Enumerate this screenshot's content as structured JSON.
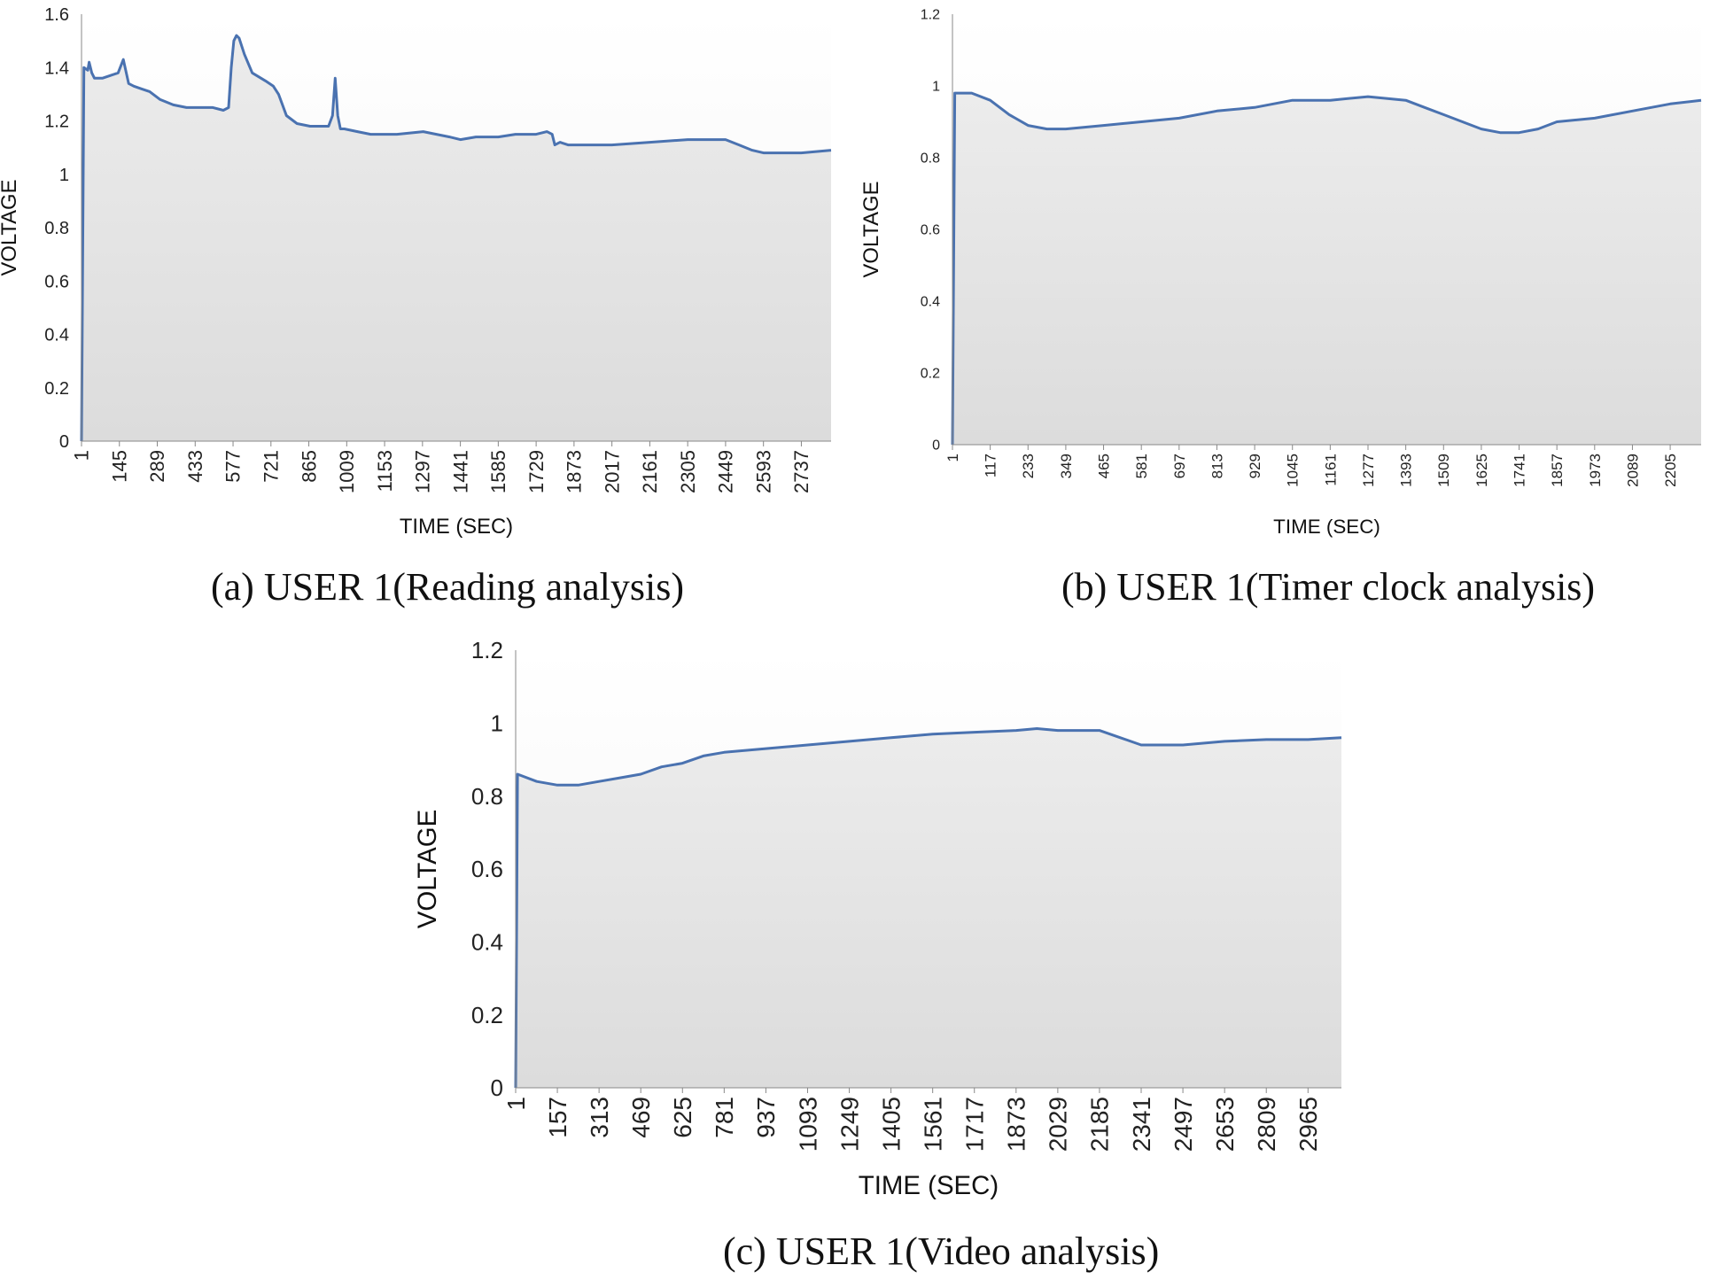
{
  "charts": [
    {
      "id": "a",
      "caption": "(a) USER 1(Reading analysis)",
      "chart_data": {
        "type": "area",
        "title": "",
        "xlabel": "TIME (SEC)",
        "ylabel": "VOLTAGE",
        "ylim": [
          0,
          1.6
        ],
        "yticks": [
          0,
          0.2,
          0.4,
          0.6,
          0.8,
          1,
          1.2,
          1.4,
          1.6
        ],
        "xlim": [
          1,
          2850
        ],
        "xticks": [
          1,
          145,
          289,
          433,
          577,
          721,
          865,
          1009,
          1153,
          1297,
          1441,
          1585,
          1729,
          1873,
          2017,
          2161,
          2305,
          2449,
          2593,
          2737
        ],
        "grid": false,
        "legend": "none",
        "line_color": "#4a72b0",
        "fill_color": "#dcdcdc",
        "series": [
          {
            "x": [
              1,
              10,
              25,
              30,
              40,
              50,
              80,
              110,
              140,
              160,
              180,
              200,
              230,
              260,
              300,
              350,
              400,
              450,
              500,
              540,
              560,
              570,
              580,
              590,
              600,
              620,
              650,
              700,
              730,
              750,
              780,
              820,
              870,
              920,
              940,
              955,
              965,
              975,
              985,
              1000,
              1050,
              1100,
              1150,
              1200,
              1300,
              1400,
              1441,
              1500,
              1585,
              1650,
              1729,
              1770,
              1790,
              1800,
              1820,
              1850,
              1900,
              2017,
              2161,
              2305,
              2449,
              2500,
              2550,
              2593,
              2650,
              2737,
              2850
            ],
            "y": [
              0,
              1.4,
              1.39,
              1.42,
              1.38,
              1.36,
              1.36,
              1.37,
              1.38,
              1.43,
              1.34,
              1.33,
              1.32,
              1.31,
              1.28,
              1.26,
              1.25,
              1.25,
              1.25,
              1.24,
              1.25,
              1.4,
              1.5,
              1.52,
              1.51,
              1.45,
              1.38,
              1.35,
              1.33,
              1.3,
              1.22,
              1.19,
              1.18,
              1.18,
              1.18,
              1.22,
              1.36,
              1.22,
              1.17,
              1.17,
              1.16,
              1.15,
              1.15,
              1.15,
              1.16,
              1.14,
              1.13,
              1.14,
              1.14,
              1.15,
              1.15,
              1.16,
              1.15,
              1.11,
              1.12,
              1.11,
              1.11,
              1.11,
              1.12,
              1.13,
              1.13,
              1.11,
              1.09,
              1.08,
              1.08,
              1.08,
              1.09
            ]
          }
        ]
      }
    },
    {
      "id": "b",
      "caption": "(b) USER 1(Timer clock analysis)",
      "chart_data": {
        "type": "area",
        "title": "",
        "xlabel": "TIME (SEC)",
        "ylabel": "VOLTAGE",
        "ylim": [
          0,
          1.2
        ],
        "yticks": [
          0,
          0.2,
          0.4,
          0.6,
          0.8,
          1,
          1.2
        ],
        "xlim": [
          1,
          2300
        ],
        "xticks": [
          1,
          117,
          233,
          349,
          465,
          581,
          697,
          813,
          929,
          1045,
          1161,
          1277,
          1393,
          1509,
          1625,
          1741,
          1857,
          1973,
          2089,
          2205
        ],
        "grid": false,
        "legend": "none",
        "line_color": "#4a72b0",
        "fill_color": "#dcdcdc",
        "series": [
          {
            "x": [
              1,
              8,
              60,
              117,
              175,
              233,
              291,
              349,
              465,
              581,
              697,
              813,
              929,
              1045,
              1161,
              1277,
              1393,
              1451,
              1509,
              1567,
              1625,
              1683,
              1741,
              1799,
              1857,
              1973,
              2089,
              2205,
              2300
            ],
            "y": [
              0,
              0.98,
              0.98,
              0.96,
              0.92,
              0.89,
              0.88,
              0.88,
              0.89,
              0.9,
              0.91,
              0.93,
              0.94,
              0.96,
              0.96,
              0.97,
              0.96,
              0.94,
              0.92,
              0.9,
              0.88,
              0.87,
              0.87,
              0.88,
              0.9,
              0.91,
              0.93,
              0.95,
              0.96
            ]
          }
        ]
      }
    },
    {
      "id": "c",
      "caption": "(c) USER 1(Video analysis)",
      "chart_data": {
        "type": "area",
        "title": "",
        "xlabel": "TIME (SEC)",
        "ylabel": "VOLTAGE",
        "ylim": [
          0,
          1.2
        ],
        "yticks": [
          0,
          0.2,
          0.4,
          0.6,
          0.8,
          1,
          1.2
        ],
        "xlim": [
          1,
          3090
        ],
        "xticks": [
          1,
          157,
          313,
          469,
          625,
          781,
          937,
          1093,
          1249,
          1405,
          1561,
          1717,
          1873,
          2029,
          2185,
          2341,
          2497,
          2653,
          2809,
          2965
        ],
        "grid": false,
        "legend": "none",
        "line_color": "#4a72b0",
        "fill_color": "#dcdcdc",
        "series": [
          {
            "x": [
              1,
              8,
              80,
              157,
              235,
              313,
              391,
              469,
              547,
              625,
              703,
              781,
              937,
              1093,
              1249,
              1405,
              1561,
              1717,
              1873,
              1951,
              2029,
              2107,
              2185,
              2263,
              2341,
              2419,
              2497,
              2653,
              2809,
              2965,
              3090
            ],
            "y": [
              0,
              0.86,
              0.84,
              0.83,
              0.83,
              0.84,
              0.85,
              0.86,
              0.88,
              0.89,
              0.91,
              0.92,
              0.93,
              0.94,
              0.95,
              0.96,
              0.97,
              0.975,
              0.98,
              0.985,
              0.98,
              0.98,
              0.98,
              0.96,
              0.94,
              0.94,
              0.94,
              0.95,
              0.955,
              0.955,
              0.96
            ]
          }
        ]
      }
    }
  ]
}
